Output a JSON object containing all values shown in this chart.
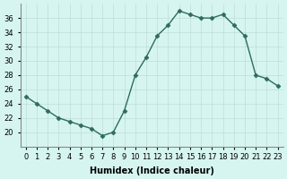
{
  "x": [
    0,
    1,
    2,
    3,
    4,
    5,
    6,
    7,
    8,
    9,
    10,
    11,
    12,
    13,
    14,
    15,
    16,
    17,
    18,
    19,
    20,
    21,
    22,
    23
  ],
  "y": [
    25,
    24,
    23,
    22,
    21.5,
    21,
    20.5,
    19.5,
    20,
    23,
    28,
    30.5,
    33.5,
    35,
    37,
    36.5,
    36,
    36,
    36.5,
    35,
    33.5,
    28,
    27.5,
    26.5
  ],
  "line_color": "#2e6b5e",
  "marker": "D",
  "marker_size": 2.5,
  "bg_color": "#d6f5f0",
  "grid_color": "#c0ddd8",
  "xlabel": "Humidex (Indice chaleur)",
  "xlim": [
    -0.5,
    23.5
  ],
  "ylim": [
    18,
    38
  ],
  "yticks": [
    20,
    22,
    24,
    26,
    28,
    30,
    32,
    34,
    36
  ],
  "xtick_labels": [
    "0",
    "1",
    "2",
    "3",
    "4",
    "5",
    "6",
    "7",
    "8",
    "9",
    "10",
    "11",
    "12",
    "13",
    "14",
    "15",
    "16",
    "17",
    "18",
    "19",
    "20",
    "21",
    "22",
    "23"
  ],
  "xlabel_fontsize": 7,
  "tick_fontsize": 6
}
